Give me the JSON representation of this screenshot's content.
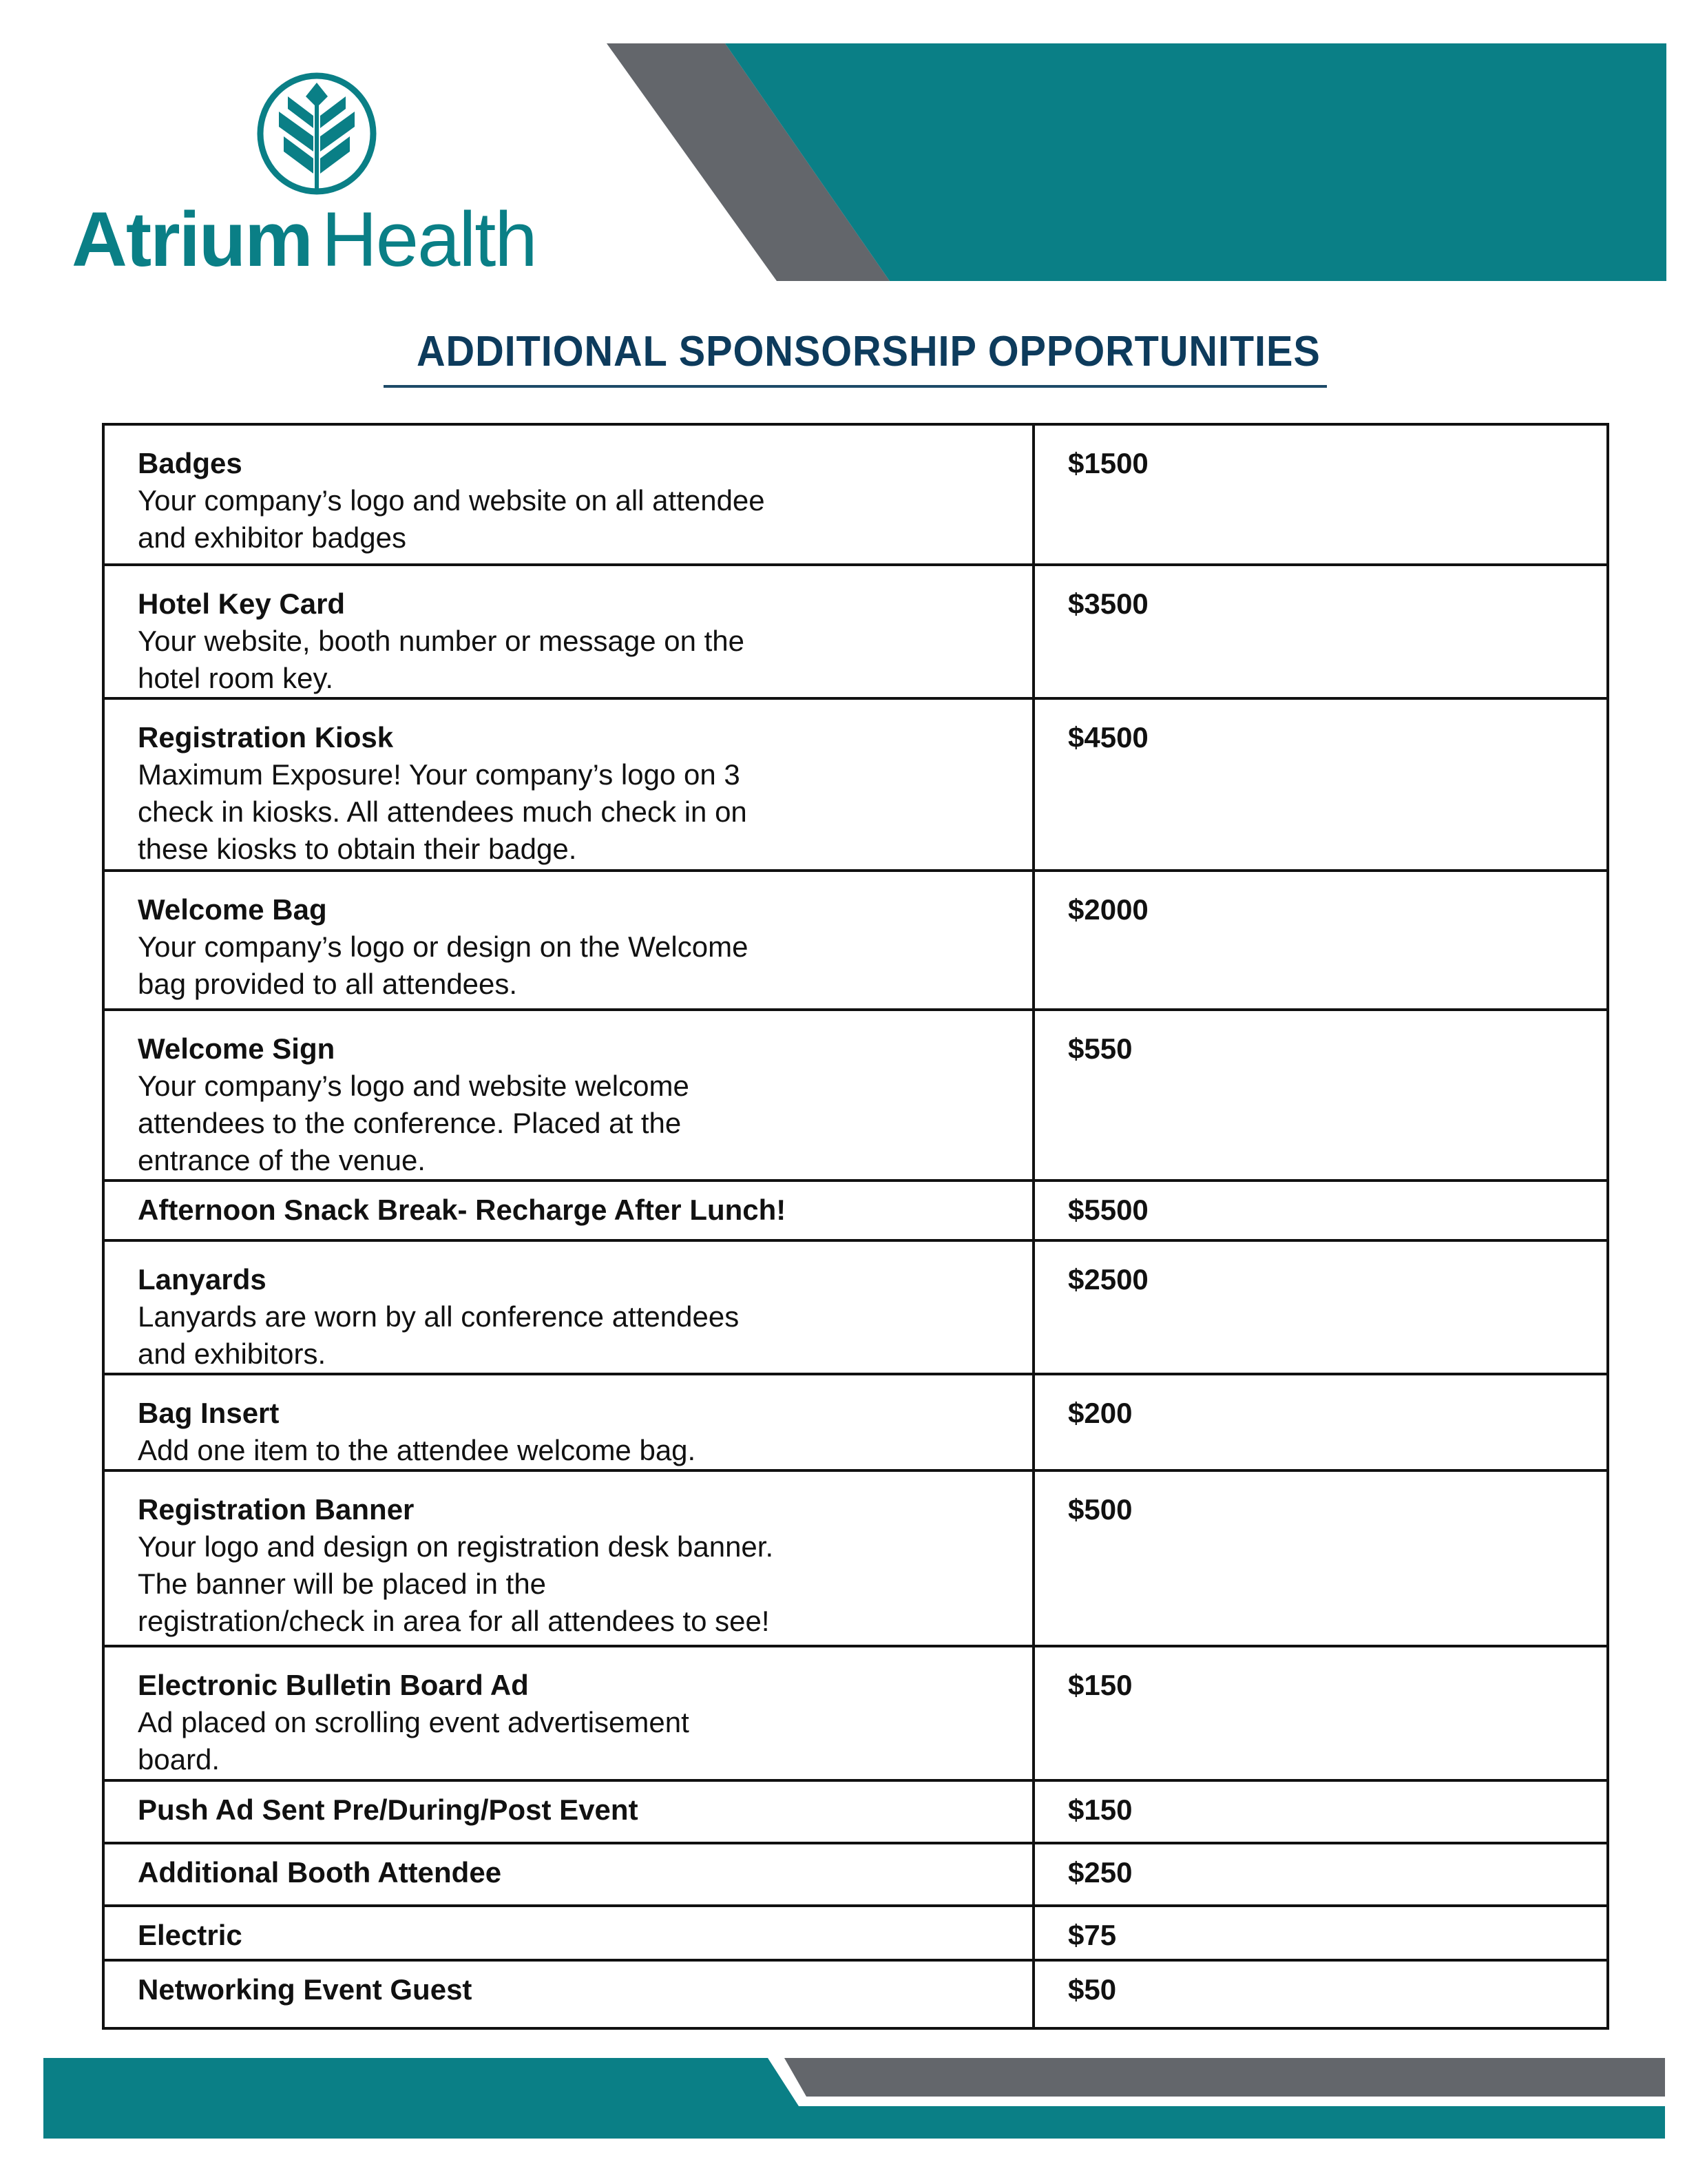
{
  "brand": {
    "name_bold": "Atrium",
    "name_light": "Health",
    "primary_color": "#0a7f86",
    "secondary_color": "#63666b",
    "logo_icon": "leaf-in-circle-icon"
  },
  "title": "ADDITIONAL SPONSORSHIP OPPORTUNITIES",
  "rows": [
    {
      "title": "Badges",
      "lines": [
        "Your company’s logo and website on all attendee",
        "and exhibitor badges"
      ],
      "price": "$1500"
    },
    {
      "title": "Hotel Key Card",
      "lines": [
        "Your website, booth number or message on the",
        "hotel room key."
      ],
      "price": "$3500"
    },
    {
      "title": "Registration Kiosk",
      "lines": [
        "Maximum Exposure! Your company’s logo on 3",
        "check in kiosks. All attendees much check in on",
        "these kiosks to obtain their badge."
      ],
      "price": "$4500"
    },
    {
      "title": "Welcome Bag",
      "lines": [
        "Your company’s logo or design on the Welcome",
        "bag provided to all attendees."
      ],
      "price": "$2000"
    },
    {
      "title": "Welcome Sign",
      "lines": [
        "Your company’s logo and website welcome",
        "attendees to the conference. Placed at the",
        "entrance of the venue."
      ],
      "price": "$550"
    },
    {
      "title": "Afternoon Snack Break- Recharge After Lunch!",
      "lines": [],
      "price": "$5500"
    },
    {
      "title": "Lanyards",
      "lines": [
        "Lanyards are worn by all conference attendees",
        "and exhibitors."
      ],
      "price": "$2500"
    },
    {
      "title": "Bag Insert",
      "lines": [
        "Add one item to the attendee welcome bag."
      ],
      "price": "$200"
    },
    {
      "title": "Registration Banner",
      "lines": [
        "Your logo and design on registration desk banner.",
        "The banner will be placed in the",
        "registration/check in area for all attendees to see!"
      ],
      "price": "$500"
    },
    {
      "title": "Electronic Bulletin Board Ad",
      "lines": [
        "Ad placed on scrolling event advertisement",
        "board."
      ],
      "price": "$150"
    },
    {
      "title": "Push Ad Sent Pre/During/Post Event",
      "lines": [],
      "price": "$150"
    },
    {
      "title": "Additional Booth Attendee",
      "lines": [],
      "price": "$250"
    },
    {
      "title": "Electric",
      "lines": [],
      "price": "$75"
    },
    {
      "title": "Networking Event Guest",
      "lines": [],
      "price": "$50"
    }
  ]
}
